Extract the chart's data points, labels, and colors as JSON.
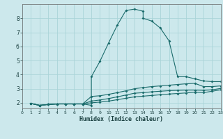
{
  "xlabel": "Humidex (Indice chaleur)",
  "background_color": "#cce8ec",
  "grid_color": "#aad4d8",
  "line_color": "#1a6b6b",
  "xlim": [
    0,
    23
  ],
  "ylim": [
    1.6,
    9.0
  ],
  "xticks": [
    0,
    1,
    2,
    3,
    4,
    5,
    6,
    7,
    8,
    9,
    10,
    11,
    12,
    13,
    14,
    15,
    16,
    17,
    18,
    19,
    20,
    21,
    22,
    23
  ],
  "yticks": [
    2,
    3,
    4,
    5,
    6,
    7,
    8
  ],
  "series": [
    {
      "x": [
        1,
        2,
        3,
        4,
        5,
        6,
        7,
        8,
        8,
        9,
        10,
        11,
        12,
        13,
        14,
        14,
        15,
        16,
        17,
        18,
        19,
        20,
        21,
        22,
        23
      ],
      "y": [
        1.95,
        1.82,
        1.88,
        1.92,
        1.92,
        1.92,
        1.92,
        1.82,
        3.85,
        4.95,
        6.25,
        7.5,
        8.55,
        8.65,
        8.5,
        8.0,
        7.8,
        7.3,
        6.4,
        3.85,
        3.85,
        3.7,
        3.55,
        3.5,
        3.5
      ]
    },
    {
      "x": [
        1,
        2,
        3,
        4,
        5,
        6,
        7,
        8,
        9,
        10,
        11,
        12,
        13,
        14,
        15,
        16,
        17,
        18,
        19,
        20,
        21,
        22,
        23
      ],
      "y": [
        1.95,
        1.82,
        1.88,
        1.92,
        1.92,
        1.92,
        1.92,
        2.45,
        2.5,
        2.6,
        2.72,
        2.85,
        3.0,
        3.08,
        3.15,
        3.2,
        3.25,
        3.3,
        3.35,
        3.38,
        3.15,
        3.15,
        3.2
      ]
    },
    {
      "x": [
        1,
        2,
        3,
        4,
        5,
        6,
        7,
        8,
        9,
        10,
        11,
        12,
        13,
        14,
        15,
        16,
        17,
        18,
        19,
        20,
        21,
        22,
        23
      ],
      "y": [
        1.95,
        1.82,
        1.88,
        1.92,
        1.92,
        1.92,
        1.92,
        2.12,
        2.2,
        2.3,
        2.42,
        2.55,
        2.68,
        2.72,
        2.78,
        2.82,
        2.86,
        2.88,
        2.9,
        2.9,
        2.88,
        2.92,
        3.02
      ]
    },
    {
      "x": [
        1,
        2,
        3,
        4,
        5,
        6,
        7,
        8,
        9,
        10,
        11,
        12,
        13,
        14,
        15,
        16,
        17,
        18,
        19,
        20,
        21,
        22,
        23
      ],
      "y": [
        1.95,
        1.82,
        1.88,
        1.92,
        1.92,
        1.92,
        1.92,
        2.0,
        2.05,
        2.12,
        2.22,
        2.32,
        2.42,
        2.47,
        2.52,
        2.57,
        2.62,
        2.66,
        2.7,
        2.75,
        2.72,
        2.82,
        2.92
      ]
    }
  ]
}
